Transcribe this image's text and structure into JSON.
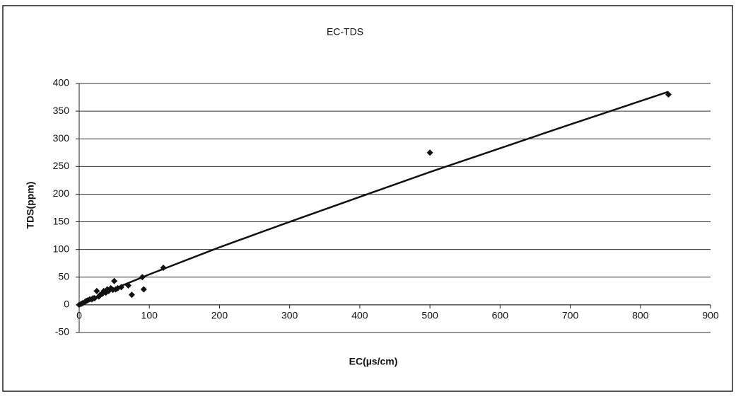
{
  "chart_data": {
    "type": "scatter",
    "title": "EC-TDS",
    "x_label": "EC(µs/cm)",
    "y_label": "TDS(ppm)",
    "series": [
      {
        "color": "#111111",
        "x": [
          0,
          3,
          5,
          8,
          10,
          12,
          15,
          18,
          20,
          22,
          25,
          28,
          30,
          33,
          35,
          38,
          40,
          42,
          45,
          48,
          50,
          52,
          55,
          60,
          70,
          75,
          90,
          92,
          120,
          500,
          840
        ],
        "values": [
          0,
          2,
          3,
          5,
          7,
          8,
          10,
          10,
          12,
          12,
          25,
          15,
          18,
          20,
          25,
          22,
          28,
          25,
          30,
          27,
          43,
          28,
          30,
          32,
          35,
          18,
          50,
          28,
          67,
          275,
          380
        ]
      }
    ],
    "trendline": {
      "color": "#111111",
      "x": [
        0,
        50,
        100,
        200,
        300,
        400,
        500,
        600,
        700,
        840
      ],
      "values": [
        0,
        29,
        55,
        104,
        150,
        195,
        240,
        283,
        326,
        385
      ]
    },
    "xlim": [
      0,
      900
    ],
    "ylim": [
      -50,
      400
    ],
    "xticks": [
      0,
      100,
      200,
      300,
      400,
      500,
      600,
      700,
      800,
      900
    ],
    "yticks": [
      -50,
      0,
      50,
      100,
      150,
      200,
      250,
      300,
      350,
      400
    ],
    "grid": true
  }
}
